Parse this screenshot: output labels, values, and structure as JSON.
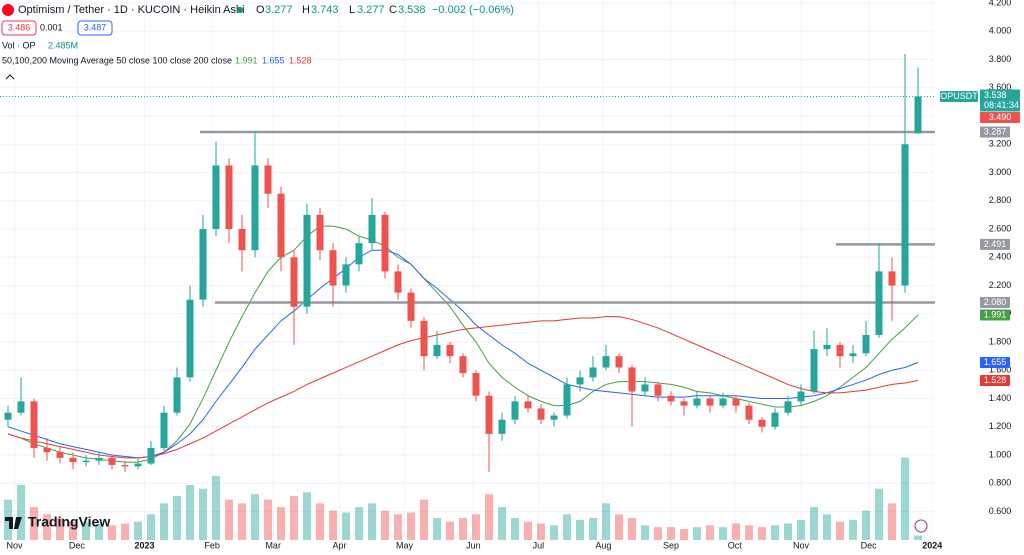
{
  "chart_data": {
    "type": "candlestick",
    "title": "Optimism / Tether · 1D · KUCOIN · Heikin Ashi",
    "ohlc_labels": [
      "O",
      "H",
      "L",
      "C"
    ],
    "change": "−0.002 (−0.06%)",
    "sell": "3.486",
    "spread": "0.001",
    "buy": "3.487",
    "volume_title": "Vol · OP",
    "volume_label": "2.485M",
    "ma_title": "50,100,200 Moving Average 50 close 100 close 200 close",
    "symbol": "OPUSDT",
    "countdown": "08:41:34",
    "brand": "TradingView",
    "up_color": "#26a69a",
    "down_color": "#ef5350",
    "ohlc": [
      [
        1.25,
        1.35,
        1.2,
        1.3
      ],
      [
        1.3,
        1.55,
        1.28,
        1.38
      ],
      [
        1.38,
        1.4,
        0.98,
        1.05
      ],
      [
        1.05,
        1.12,
        0.96,
        1.02
      ],
      [
        1.02,
        1.06,
        0.94,
        0.98
      ],
      [
        0.98,
        1.02,
        0.9,
        0.95
      ],
      [
        0.95,
        1.0,
        0.92,
        0.96
      ],
      [
        0.96,
        1.02,
        0.93,
        0.98
      ],
      [
        0.98,
        1.0,
        0.9,
        0.93
      ],
      [
        0.93,
        0.96,
        0.88,
        0.92
      ],
      [
        0.92,
        0.98,
        0.9,
        0.94
      ],
      [
        0.94,
        1.1,
        0.93,
        1.05
      ],
      [
        1.05,
        1.35,
        1.03,
        1.3
      ],
      [
        1.3,
        1.62,
        1.28,
        1.55
      ],
      [
        1.55,
        2.2,
        1.52,
        2.1
      ],
      [
        2.1,
        2.7,
        2.05,
        2.6
      ],
      [
        2.6,
        3.22,
        2.55,
        3.05
      ],
      [
        3.05,
        3.1,
        2.5,
        2.6
      ],
      [
        2.6,
        2.7,
        2.3,
        2.45
      ],
      [
        2.45,
        3.29,
        2.4,
        3.05
      ],
      [
        3.05,
        3.1,
        2.75,
        2.85
      ],
      [
        2.85,
        2.9,
        2.3,
        2.4
      ],
      [
        2.4,
        2.45,
        1.78,
        2.05
      ],
      [
        2.05,
        2.78,
        2.0,
        2.7
      ],
      [
        2.7,
        2.75,
        2.38,
        2.45
      ],
      [
        2.45,
        2.5,
        2.05,
        2.2
      ],
      [
        2.2,
        2.4,
        2.15,
        2.35
      ],
      [
        2.35,
        2.55,
        2.3,
        2.5
      ],
      [
        2.5,
        2.82,
        2.45,
        2.7
      ],
      [
        2.7,
        2.72,
        2.25,
        2.3
      ],
      [
        2.3,
        2.35,
        2.1,
        2.15
      ],
      [
        2.15,
        2.18,
        1.9,
        1.95
      ],
      [
        1.95,
        1.98,
        1.6,
        1.7
      ],
      [
        1.7,
        1.88,
        1.68,
        1.78
      ],
      [
        1.78,
        1.8,
        1.65,
        1.7
      ],
      [
        1.7,
        1.72,
        1.55,
        1.58
      ],
      [
        1.58,
        1.6,
        1.38,
        1.42
      ],
      [
        1.42,
        1.45,
        0.88,
        1.15
      ],
      [
        1.15,
        1.3,
        1.1,
        1.25
      ],
      [
        1.25,
        1.42,
        1.22,
        1.38
      ],
      [
        1.38,
        1.42,
        1.3,
        1.33
      ],
      [
        1.33,
        1.36,
        1.22,
        1.25
      ],
      [
        1.25,
        1.3,
        1.2,
        1.28
      ],
      [
        1.28,
        1.55,
        1.26,
        1.5
      ],
      [
        1.5,
        1.6,
        1.45,
        1.55
      ],
      [
        1.55,
        1.7,
        1.52,
        1.62
      ],
      [
        1.62,
        1.78,
        1.6,
        1.7
      ],
      [
        1.7,
        1.72,
        1.58,
        1.62
      ],
      [
        1.62,
        1.64,
        1.2,
        1.45
      ],
      [
        1.45,
        1.55,
        1.42,
        1.5
      ],
      [
        1.5,
        1.52,
        1.38,
        1.42
      ],
      [
        1.42,
        1.45,
        1.35,
        1.38
      ],
      [
        1.38,
        1.4,
        1.28,
        1.35
      ],
      [
        1.35,
        1.45,
        1.33,
        1.4
      ],
      [
        1.4,
        1.42,
        1.3,
        1.35
      ],
      [
        1.35,
        1.44,
        1.33,
        1.4
      ],
      [
        1.4,
        1.42,
        1.3,
        1.35
      ],
      [
        1.35,
        1.37,
        1.22,
        1.25
      ],
      [
        1.25,
        1.27,
        1.16,
        1.2
      ],
      [
        1.2,
        1.33,
        1.18,
        1.3
      ],
      [
        1.3,
        1.42,
        1.28,
        1.38
      ],
      [
        1.38,
        1.5,
        1.35,
        1.45
      ],
      [
        1.45,
        1.88,
        1.43,
        1.75
      ],
      [
        1.75,
        1.9,
        1.7,
        1.78
      ],
      [
        1.78,
        1.8,
        1.62,
        1.7
      ],
      [
        1.7,
        1.78,
        1.65,
        1.72
      ],
      [
        1.72,
        1.95,
        1.7,
        1.85
      ],
      [
        1.85,
        2.5,
        1.83,
        2.3
      ],
      [
        2.3,
        2.4,
        1.95,
        2.2
      ],
      [
        2.2,
        3.84,
        2.15,
        3.2
      ],
      [
        3.277,
        3.743,
        3.277,
        3.538
      ]
    ],
    "volume": [
      22,
      30,
      18,
      14,
      12,
      10,
      10,
      9,
      8,
      9,
      10,
      14,
      20,
      24,
      30,
      28,
      35,
      22,
      20,
      25,
      22,
      18,
      24,
      26,
      20,
      16,
      15,
      18,
      20,
      16,
      14,
      15,
      22,
      12,
      10,
      12,
      14,
      25,
      18,
      12,
      10,
      9,
      8,
      14,
      11,
      12,
      20,
      14,
      12,
      8,
      7,
      7,
      6,
      7,
      8,
      7,
      9,
      8,
      7,
      8,
      9,
      11,
      18,
      14,
      10,
      11,
      16,
      28,
      20,
      45,
      2.485
    ],
    "volume_lim": [
      0,
      60
    ],
    "series": [
      {
        "color": "#43a047",
        "values": [
          1.15,
          1.12,
          1.08,
          1.05,
          1.02,
          1.0,
          0.98,
          0.97,
          0.96,
          0.95,
          0.95,
          0.97,
          1.02,
          1.1,
          1.22,
          1.4,
          1.6,
          1.8,
          1.98,
          2.15,
          2.3,
          2.4,
          2.45,
          2.55,
          2.62,
          2.62,
          2.6,
          2.55,
          2.52,
          2.48,
          2.4,
          2.35,
          2.25,
          2.15,
          2.05,
          1.92,
          1.8,
          1.65,
          1.55,
          1.48,
          1.42,
          1.38,
          1.35,
          1.35,
          1.38,
          1.45,
          1.5,
          1.52,
          1.52,
          1.52,
          1.51,
          1.5,
          1.48,
          1.45,
          1.44,
          1.42,
          1.4,
          1.38,
          1.36,
          1.34,
          1.34,
          1.35,
          1.38,
          1.42,
          1.48,
          1.55,
          1.62,
          1.72,
          1.82,
          1.9,
          1.991
        ]
      },
      {
        "color": "#2962ff",
        "values": [
          1.2,
          1.17,
          1.14,
          1.11,
          1.08,
          1.06,
          1.04,
          1.02,
          1.0,
          0.99,
          0.98,
          0.99,
          1.02,
          1.08,
          1.15,
          1.25,
          1.38,
          1.5,
          1.62,
          1.75,
          1.85,
          1.95,
          2.02,
          2.1,
          2.18,
          2.25,
          2.32,
          2.4,
          2.45,
          2.45,
          2.42,
          2.35,
          2.25,
          2.18,
          2.1,
          2.02,
          1.92,
          1.85,
          1.78,
          1.72,
          1.65,
          1.6,
          1.55,
          1.5,
          1.48,
          1.46,
          1.45,
          1.44,
          1.43,
          1.42,
          1.41,
          1.41,
          1.41,
          1.42,
          1.42,
          1.42,
          1.42,
          1.41,
          1.4,
          1.4,
          1.4,
          1.41,
          1.42,
          1.44,
          1.47,
          1.5,
          1.53,
          1.57,
          1.6,
          1.62,
          1.655
        ]
      },
      {
        "color": "#e53935",
        "values": [
          1.15,
          1.12,
          1.1,
          1.08,
          1.06,
          1.04,
          1.02,
          1.0,
          0.99,
          0.98,
          0.98,
          0.99,
          1.01,
          1.04,
          1.08,
          1.12,
          1.17,
          1.22,
          1.27,
          1.32,
          1.37,
          1.41,
          1.45,
          1.5,
          1.54,
          1.58,
          1.62,
          1.66,
          1.7,
          1.74,
          1.78,
          1.81,
          1.83,
          1.85,
          1.87,
          1.89,
          1.9,
          1.91,
          1.92,
          1.93,
          1.94,
          1.95,
          1.95,
          1.96,
          1.97,
          1.97,
          1.98,
          1.98,
          1.96,
          1.93,
          1.9,
          1.86,
          1.82,
          1.78,
          1.74,
          1.7,
          1.66,
          1.62,
          1.58,
          1.54,
          1.5,
          1.47,
          1.45,
          1.44,
          1.44,
          1.45,
          1.46,
          1.48,
          1.5,
          1.51,
          1.528
        ]
      }
    ],
    "hlines": [
      3.287,
      2.491,
      {
        "value": 2.08,
        "label": "2.080"
      }
    ],
    "hline_color": "#9598a1",
    "ask_line": {
      "value": 3.49,
      "label": "3.490"
    },
    "ylim": [
      0.42,
      4.221
    ],
    "yticks": [
      {
        "value": 0.6,
        "label": "0.600"
      },
      {
        "value": 0.8,
        "label": "0.800"
      },
      {
        "value": 1.0,
        "label": "1.000"
      },
      {
        "value": 1.2,
        "label": "1.200"
      },
      {
        "value": 1.4,
        "label": "1.400"
      },
      {
        "value": 1.6,
        "label": "1.600"
      },
      {
        "value": 1.8,
        "label": "1.800"
      },
      {
        "value": 2.0,
        "label": "2.000"
      },
      {
        "value": 2.2,
        "label": "2.200"
      },
      {
        "value": 2.4,
        "label": "2.400"
      },
      {
        "value": 2.6,
        "label": "2.600"
      },
      {
        "value": 2.8,
        "label": "2.800"
      },
      {
        "value": 3.0,
        "label": "3.000"
      },
      {
        "value": 3.2,
        "label": "3.200"
      },
      {
        "value": 3.4,
        "label": "3.400"
      },
      {
        "value": 3.6,
        "label": "3.600"
      },
      {
        "value": 3.8,
        "label": "3.800"
      },
      {
        "value": 4.0,
        "label": "4.000"
      },
      {
        "value": 4.2,
        "label": "4.200"
      }
    ],
    "xticks": [
      {
        "value": 0.5,
        "label": "Nov"
      },
      {
        "value": 5.3,
        "label": "Dec"
      },
      {
        "value": 10.5,
        "label": "2023"
      },
      {
        "value": 15.7,
        "label": "Feb"
      },
      {
        "value": 20.4,
        "label": "Mar"
      },
      {
        "value": 25.5,
        "label": "Apr"
      },
      {
        "value": 30.5,
        "label": "May"
      },
      {
        "value": 35.8,
        "label": "Jun"
      },
      {
        "value": 40.8,
        "label": "Jul"
      },
      {
        "value": 45.8,
        "label": "Aug"
      },
      {
        "value": 51,
        "label": "Sep"
      },
      {
        "value": 55.9,
        "label": "Oct"
      },
      {
        "value": 61,
        "label": "Nov"
      },
      {
        "value": 66.2,
        "label": "Dec"
      },
      {
        "value": 71.1,
        "label": "2024"
      }
    ],
    "grid": true
  }
}
